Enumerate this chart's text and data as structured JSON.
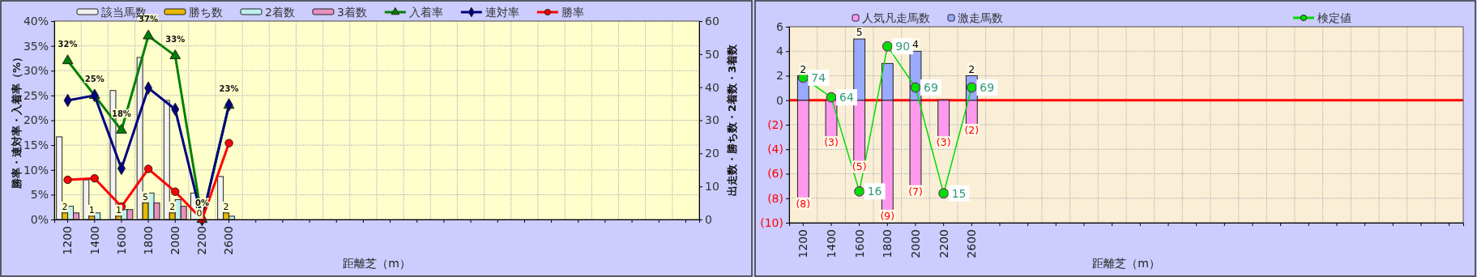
{
  "chart_data": [
    {
      "type": "bar",
      "categories": [
        "1200",
        "1400",
        "1600",
        "1800",
        "2000",
        "2200",
        "2600",
        null,
        null,
        null,
        null,
        null,
        null,
        null,
        null,
        null,
        null,
        null,
        null,
        null,
        null,
        null,
        null,
        null
      ],
      "xlabel": "距離芝（m）",
      "ylabel": "勝率・連対率・入着率（%）",
      "y2label": "出走数・勝ち数・2着数・3着数",
      "ylim": [
        0,
        40
      ],
      "yticks": [
        {
          "value": 0,
          "label": "0%"
        },
        {
          "value": 5,
          "label": "5%"
        },
        {
          "value": 10,
          "label": "10%"
        },
        {
          "value": 15,
          "label": "15%"
        },
        {
          "value": 20,
          "label": "20%"
        },
        {
          "value": 25,
          "label": "25%"
        },
        {
          "value": 30,
          "label": "30%"
        },
        {
          "value": 35,
          "label": "35%"
        },
        {
          "value": 40,
          "label": "40%"
        }
      ],
      "y2lim": [
        0,
        60
      ],
      "y2ticks": [
        0,
        10,
        20,
        30,
        40,
        50,
        60
      ],
      "grid": true,
      "legend": "top",
      "series": [
        {
          "name": "該当馬数",
          "axis": "y2",
          "color": "#f2f2f2",
          "values": [
            25,
            12,
            39,
            49,
            36,
            8,
            13,
            null,
            null,
            null,
            null,
            null,
            null,
            null,
            null,
            null,
            null,
            null,
            null,
            null,
            null,
            null,
            null,
            null
          ]
        },
        {
          "name": "勝ち数",
          "axis": "y2",
          "color": "#e6b800",
          "values": [
            2,
            1,
            1,
            5,
            2,
            0,
            2,
            null,
            null,
            null,
            null,
            null,
            null,
            null,
            null,
            null,
            null,
            null,
            null,
            null,
            null,
            null,
            null,
            null
          ],
          "value_labels": [
            "2",
            "1",
            "1",
            "5",
            "2",
            "0",
            "2",
            null,
            null,
            null,
            null,
            null,
            null,
            null,
            null,
            null,
            null,
            null,
            null,
            null,
            null,
            null,
            null,
            null
          ]
        },
        {
          "name": "2着数",
          "axis": "y2",
          "color": "#bff0f0",
          "values": [
            4,
            2,
            3,
            8,
            6,
            0,
            1,
            null,
            null,
            null,
            null,
            null,
            null,
            null,
            null,
            null,
            null,
            null,
            null,
            null,
            null,
            null,
            null,
            null
          ]
        },
        {
          "name": "3着数",
          "axis": "y2",
          "color": "#e890c0",
          "values": [
            2,
            0,
            3,
            5,
            4,
            0,
            0,
            null,
            null,
            null,
            null,
            null,
            null,
            null,
            null,
            null,
            null,
            null,
            null,
            null,
            null,
            null,
            null,
            null
          ]
        },
        {
          "name": "入着率",
          "type": "line",
          "color": "#008000",
          "marker": "triangle",
          "values": [
            32,
            25,
            18,
            37,
            33,
            0,
            23,
            null,
            null,
            null,
            null,
            null,
            null,
            null,
            null,
            null,
            null,
            null,
            null,
            null,
            null,
            null,
            null,
            null
          ],
          "value_labels": [
            "32%",
            "25%",
            "18%",
            "37%",
            "33%",
            "0%",
            "23%",
            null,
            null,
            null,
            null,
            null,
            null,
            null,
            null,
            null,
            null,
            null,
            null,
            null,
            null,
            null,
            null,
            null
          ]
        },
        {
          "name": "連対率",
          "type": "line",
          "color": "#000080",
          "marker": "diamond",
          "values": [
            24,
            25,
            10.3,
            26.5,
            22.2,
            0,
            23.1,
            null,
            null,
            null,
            null,
            null,
            null,
            null,
            null,
            null,
            null,
            null,
            null,
            null,
            null,
            null,
            null,
            null
          ]
        },
        {
          "name": "勝率",
          "type": "line",
          "color": "#ff0000",
          "marker": "circle",
          "values": [
            8,
            8.3,
            2.6,
            10.2,
            5.6,
            0,
            15.4,
            null,
            null,
            null,
            null,
            null,
            null,
            null,
            null,
            null,
            null,
            null,
            null,
            null,
            null,
            null,
            null,
            null
          ]
        }
      ]
    },
    {
      "type": "bar",
      "stacked": true,
      "categories": [
        "1200",
        "1400",
        "1600",
        "1800",
        "2000",
        "2200",
        "2600",
        null,
        null,
        null,
        null,
        null,
        null,
        null,
        null,
        null,
        null,
        null,
        null,
        null,
        null,
        null,
        null,
        null
      ],
      "xlabel": "距離芝（m）",
      "ylim": [
        -10,
        6
      ],
      "yticks": [
        {
          "value": -10,
          "label": "(10)"
        },
        {
          "value": -8,
          "label": "(8)"
        },
        {
          "value": -6,
          "label": "(6)"
        },
        {
          "value": -4,
          "label": "(4)"
        },
        {
          "value": -2,
          "label": "(2)"
        },
        0,
        2,
        4,
        6
      ],
      "y2lim": [
        0,
        100
      ],
      "grid": true,
      "legend": "top",
      "ref_lines": [
        {
          "axis": "y",
          "value": 0,
          "color": "#ff0000"
        }
      ],
      "series": [
        {
          "name": "人気凡走馬数",
          "color": "#ff99ee",
          "values": [
            -8,
            -3,
            -5,
            -9,
            -7,
            -3,
            -2,
            null,
            null,
            null,
            null,
            null,
            null,
            null,
            null,
            null,
            null,
            null,
            null,
            null,
            null,
            null,
            null,
            null
          ],
          "value_labels": [
            "(8)",
            "(3)",
            "(5)",
            "(9)",
            "(7)",
            "(3)",
            "(2)",
            null,
            null,
            null,
            null,
            null,
            null,
            null,
            null,
            null,
            null,
            null,
            null,
            null,
            null,
            null,
            null,
            null
          ]
        },
        {
          "name": "激走馬数",
          "color": "#99aaff",
          "values": [
            2,
            0,
            5,
            3,
            4,
            0,
            2,
            null,
            null,
            null,
            null,
            null,
            null,
            null,
            null,
            null,
            null,
            null,
            null,
            null,
            null,
            null,
            null,
            null
          ],
          "value_labels": [
            "2",
            null,
            "5",
            null,
            "4",
            null,
            "2",
            null,
            null,
            null,
            null,
            null,
            null,
            null,
            null,
            null,
            null,
            null,
            null,
            null,
            null,
            null,
            null,
            null
          ]
        },
        {
          "name": "検定値",
          "type": "line",
          "axis": "y2",
          "color": "#00dd00",
          "marker": "circle",
          "values": [
            74,
            64,
            16,
            90,
            69,
            15,
            69,
            null,
            null,
            null,
            null,
            null,
            null,
            null,
            null,
            null,
            null,
            null,
            null,
            null,
            null,
            null,
            null,
            null
          ],
          "value_labels": [
            "74",
            "64",
            "16",
            "90",
            "69",
            "15",
            "69",
            null,
            null,
            null,
            null,
            null,
            null,
            null,
            null,
            null,
            null,
            null,
            null,
            null,
            null,
            null,
            null,
            null
          ]
        }
      ]
    }
  ]
}
